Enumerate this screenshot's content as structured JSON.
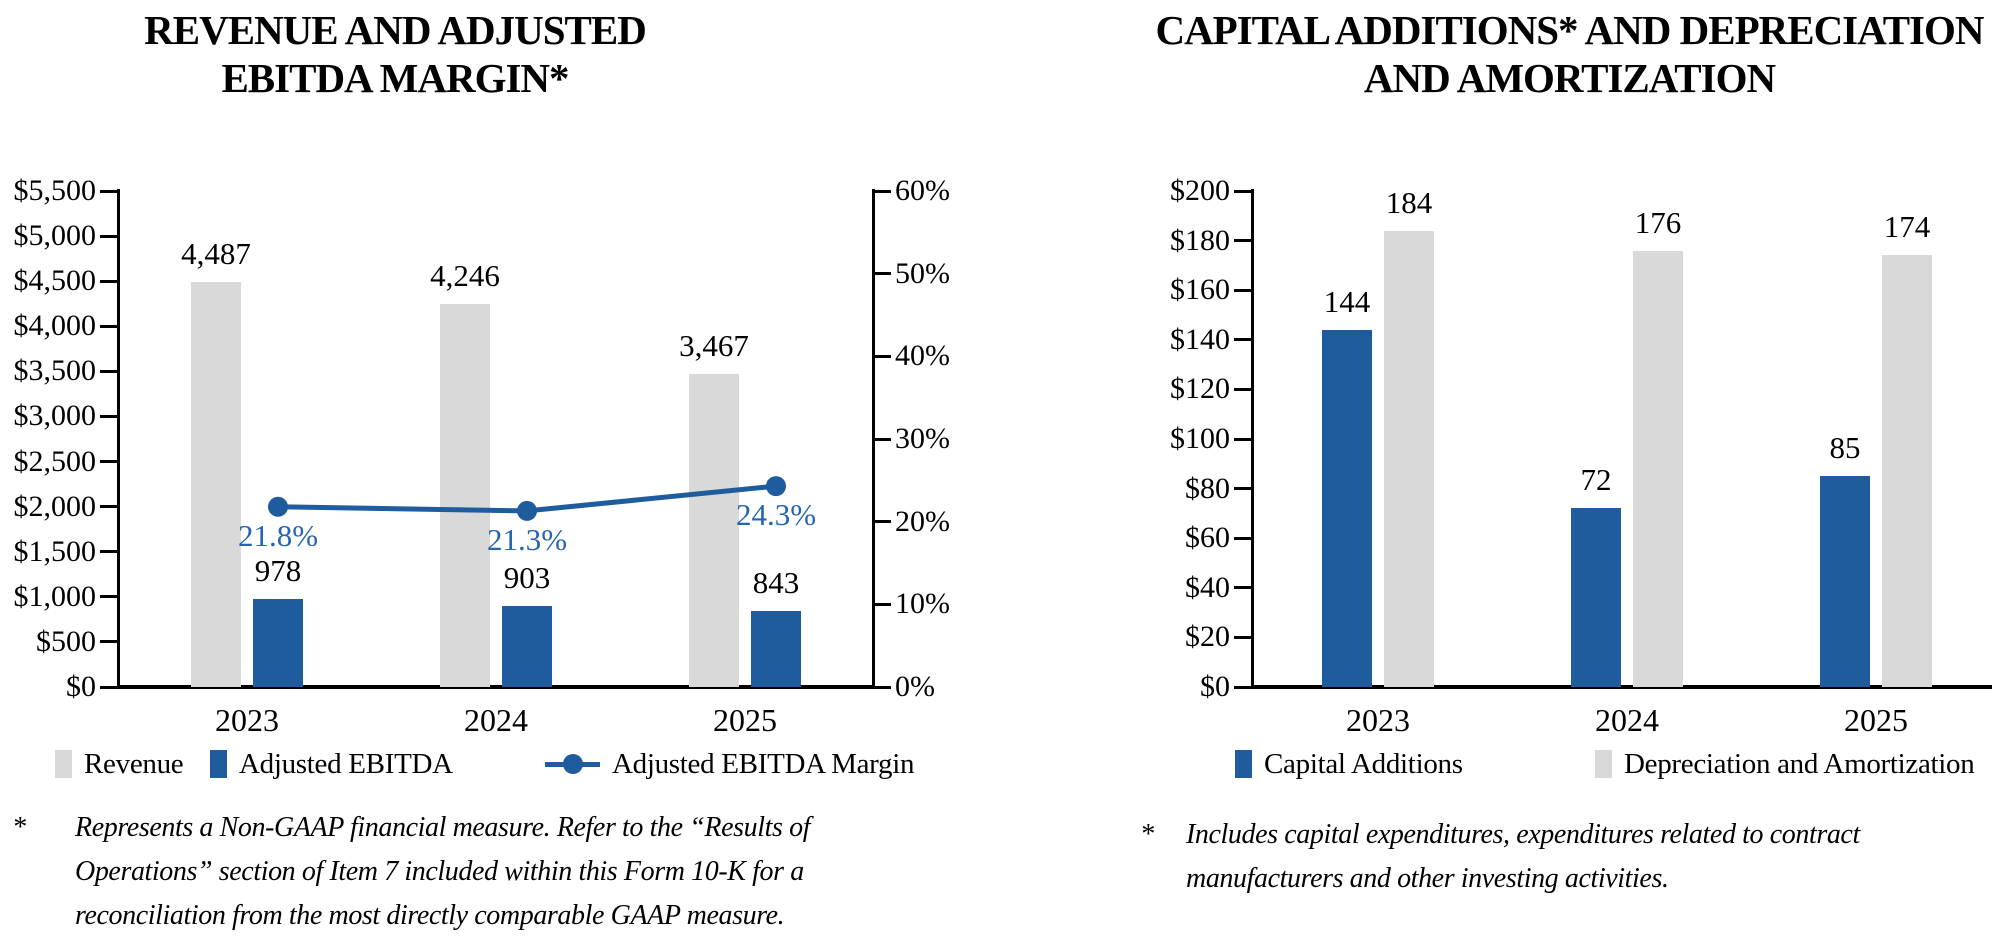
{
  "colors": {
    "blue": "#1E5C9E",
    "blue_label": "#2565B0",
    "gray": "#D9D9D9",
    "axis": "#000000",
    "text": "#000000",
    "background": "#FFFFFF"
  },
  "chart_data": [
    {
      "type": "grouped-bar+line",
      "title_lines": [
        "REVENUE AND ADJUSTED",
        "EBITDA MARGIN*"
      ],
      "title": "REVENUE AND ADJUSTED EBITDA MARGIN*",
      "categories": [
        "2023",
        "2024",
        "2025"
      ],
      "y_axis_left": {
        "min": 0,
        "max": 5500,
        "step": 500,
        "labels": [
          "$5,500",
          "$5,000",
          "$4,500",
          "$4,000",
          "$3,500",
          "$3,000",
          "$2,500",
          "$2,000",
          "$1,500",
          "$1,000",
          "$500",
          "$0"
        ]
      },
      "y_axis_right": {
        "min": 0,
        "max": 60,
        "step": 10,
        "labels": [
          "60%",
          "50%",
          "40%",
          "30%",
          "20%",
          "10%",
          "0%"
        ]
      },
      "series": [
        {
          "name": "Revenue",
          "type": "bar",
          "color": "gray",
          "values": [
            4487,
            4246,
            3467
          ],
          "value_labels": [
            "4,487",
            "4,246",
            "3,467"
          ]
        },
        {
          "name": "Adjusted EBITDA",
          "type": "bar",
          "color": "blue",
          "values": [
            978,
            903,
            843
          ],
          "value_labels": [
            "978",
            "903",
            "843"
          ]
        },
        {
          "name": "Adjusted EBITDA Margin",
          "type": "line",
          "axis": "right",
          "color": "blue",
          "values": [
            21.8,
            21.3,
            24.3
          ],
          "value_labels": [
            "21.8%",
            "21.3%",
            "24.3%"
          ]
        }
      ],
      "legend_position": "bottom",
      "legend": [
        {
          "label": "Revenue",
          "swatch": "gray-bar"
        },
        {
          "label": "Adjusted EBITDA",
          "swatch": "blue-bar"
        },
        {
          "label": "Adjusted EBITDA Margin",
          "swatch": "blue-line"
        }
      ],
      "footnote": {
        "marker": "*",
        "lines": [
          "Represents a Non-GAAP financial measure. Refer to the “Results of",
          "Operations” section of Item 7 included within this Form 10-K for a",
          "reconciliation from the most directly comparable GAAP measure."
        ]
      }
    },
    {
      "type": "grouped-bar",
      "title_lines": [
        "CAPITAL ADDITIONS* AND DEPRECIATION",
        "AND AMORTIZATION"
      ],
      "title": "CAPITAL ADDITIONS* AND DEPRECIATION AND AMORTIZATION",
      "categories": [
        "2023",
        "2024",
        "2025"
      ],
      "y_axis_left": {
        "min": 0,
        "max": 200,
        "step": 20,
        "labels": [
          "$200",
          "$180",
          "$160",
          "$140",
          "$120",
          "$100",
          "$80",
          "$60",
          "$40",
          "$20",
          "$0"
        ]
      },
      "series": [
        {
          "name": "Capital Additions",
          "type": "bar",
          "color": "blue",
          "values": [
            144,
            72,
            85
          ],
          "value_labels": [
            "144",
            "72",
            "85"
          ]
        },
        {
          "name": "Depreciation and Amortization",
          "type": "bar",
          "color": "gray",
          "values": [
            184,
            176,
            174
          ],
          "value_labels": [
            "184",
            "176",
            "174"
          ]
        }
      ],
      "legend_position": "bottom",
      "legend": [
        {
          "label": "Capital Additions",
          "swatch": "blue-bar"
        },
        {
          "label": "Depreciation and Amortization",
          "swatch": "gray-bar"
        }
      ],
      "footnote": {
        "marker": "*",
        "lines": [
          "Includes capital expenditures, expenditures related to contract",
          "manufacturers and other investing activities."
        ]
      }
    }
  ]
}
